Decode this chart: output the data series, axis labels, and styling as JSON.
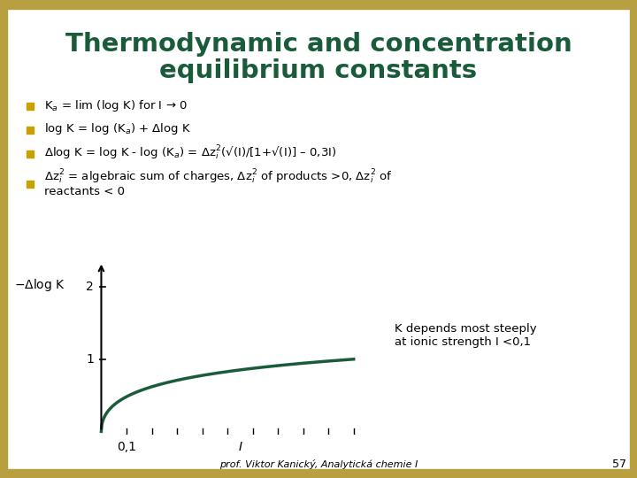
{
  "title_line1": "Thermodynamic and concentration",
  "title_line2": "equilibrium constants",
  "title_color": "#1a5c3a",
  "background_color": "#ffffff",
  "border_color": "#b8a040",
  "bullet_color": "#c8a000",
  "bullet_points": [
    "K$_a$ = lim (log K) for I → 0",
    "log K = log (K$_a$) + Δlog K",
    "Δlog K = log K - log (K$_a$) = Δz$_i^2$(√(I)/[1+√(I)] – 0,3I)",
    "Δz$_i^2$ = algebraic sum of charges, Δz$_i^2$ of products >0, Δz$_i^2$ of reactants < 0"
  ],
  "curve_color": "#1a5c3a",
  "annotation_text": "K depends most steeply\nat ionic strength I <0,1",
  "ylabel": "$-Δ$log K",
  "xlabel_tick1_val": 0.1,
  "xlabel_tick1_label": "0,1",
  "xlabel_tick2_val": 0.55,
  "xlabel_tick2_label": "I",
  "ytick1": 1,
  "ytick2": 2,
  "footer": "prof. Viktor Kanický, Analytická chemie I",
  "page_number": "57",
  "curve_scale": 2.0
}
